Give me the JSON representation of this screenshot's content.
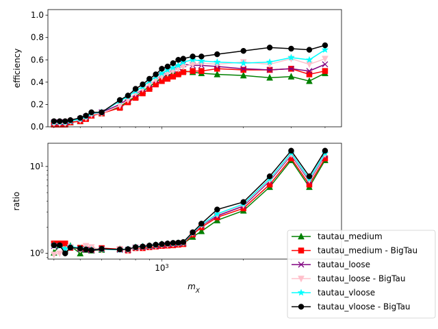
{
  "chart_data": [
    {
      "type": "line",
      "panel": "top",
      "title": "",
      "xlabel": "",
      "ylabel": "efficiency",
      "xscale": "log",
      "xlim": [
        380,
        4600
      ],
      "ylim": [
        0.0,
        1.05
      ],
      "xticks": [],
      "yticks": [
        "0.0",
        "0.2",
        "0.4",
        "0.6",
        "0.8",
        "1.0"
      ],
      "x": [
        400,
        420,
        440,
        460,
        500,
        525,
        550,
        600,
        700,
        750,
        800,
        850,
        900,
        950,
        1000,
        1050,
        1100,
        1150,
        1200,
        1300,
        1400,
        1600,
        2000,
        2500,
        3000,
        3500,
        4000
      ],
      "series": [
        {
          "name": "tautau_medium",
          "color": "#008000",
          "marker": "triangle",
          "values": [
            0.03,
            0.03,
            0.03,
            0.04,
            0.05,
            0.08,
            0.1,
            0.12,
            0.18,
            0.23,
            0.27,
            0.32,
            0.36,
            0.4,
            0.44,
            0.46,
            0.48,
            0.48,
            0.5,
            0.49,
            0.48,
            0.47,
            0.46,
            0.44,
            0.45,
            0.41,
            0.48
          ]
        },
        {
          "name": "tautau_medium - BigTau",
          "color": "#ff0000",
          "marker": "square",
          "values": [
            0.02,
            0.02,
            0.02,
            0.04,
            0.05,
            0.07,
            0.1,
            0.12,
            0.17,
            0.22,
            0.26,
            0.3,
            0.34,
            0.38,
            0.41,
            0.43,
            0.45,
            0.47,
            0.49,
            0.5,
            0.5,
            0.52,
            0.51,
            0.51,
            0.52,
            0.47,
            0.5
          ]
        },
        {
          "name": "tautau_loose",
          "color": "#800080",
          "marker": "x",
          "values": [
            0.04,
            0.04,
            0.04,
            0.05,
            0.07,
            0.09,
            0.11,
            0.13,
            0.2,
            0.25,
            0.29,
            0.34,
            0.38,
            0.42,
            0.46,
            0.48,
            0.51,
            0.53,
            0.56,
            0.55,
            0.55,
            0.54,
            0.52,
            0.51,
            0.52,
            0.5,
            0.56
          ]
        },
        {
          "name": "tautau_loose - BigTau",
          "color": "#ffc0cb",
          "marker": "triangle-down",
          "values": [
            0.03,
            0.03,
            0.03,
            0.05,
            0.06,
            0.08,
            0.11,
            0.12,
            0.19,
            0.24,
            0.3,
            0.34,
            0.38,
            0.42,
            0.45,
            0.48,
            0.5,
            0.52,
            0.54,
            0.56,
            0.57,
            0.56,
            0.58,
            0.56,
            0.61,
            0.56,
            0.61
          ]
        },
        {
          "name": "tautau_vloose",
          "color": "#00ffff",
          "marker": "star",
          "values": [
            0.04,
            0.04,
            0.04,
            0.05,
            0.07,
            0.09,
            0.12,
            0.13,
            0.23,
            0.27,
            0.32,
            0.36,
            0.41,
            0.45,
            0.48,
            0.51,
            0.53,
            0.55,
            0.58,
            0.6,
            0.59,
            0.58,
            0.57,
            0.58,
            0.62,
            0.6,
            0.69
          ]
        },
        {
          "name": "tautau_vloose - BigTau",
          "color": "#000000",
          "marker": "circle",
          "values": [
            0.05,
            0.05,
            0.05,
            0.06,
            0.08,
            0.1,
            0.13,
            0.13,
            0.24,
            0.28,
            0.34,
            0.38,
            0.43,
            0.47,
            0.52,
            0.54,
            0.57,
            0.6,
            0.61,
            0.63,
            0.63,
            0.65,
            0.68,
            0.71,
            0.7,
            0.69,
            0.73
          ]
        }
      ]
    },
    {
      "type": "line",
      "panel": "bottom",
      "title": "",
      "xlabel": "m_X",
      "ylabel": "ratio",
      "xscale": "log",
      "yscale": "log",
      "xlim": [
        380,
        4600
      ],
      "ylim": [
        0.86,
        18.5
      ],
      "xticks": [
        "10^3"
      ],
      "yticks": [
        "10^0",
        "10^1"
      ],
      "x": [
        400,
        420,
        440,
        460,
        500,
        525,
        550,
        600,
        700,
        750,
        800,
        850,
        900,
        950,
        1000,
        1050,
        1100,
        1150,
        1200,
        1300,
        1400,
        1600,
        2000,
        2500,
        3000,
        3500,
        4000
      ],
      "series": [
        {
          "name": "tautau_medium",
          "color": "#008000",
          "marker": "triangle",
          "values": [
            1.02,
            1.25,
            1.12,
            1.22,
            1.0,
            1.1,
            1.08,
            1.1,
            1.12,
            1.1,
            1.18,
            1.2,
            1.22,
            1.25,
            1.28,
            1.29,
            1.3,
            1.31,
            1.3,
            1.55,
            1.8,
            2.4,
            3.1,
            5.8,
            11.8,
            5.8,
            11.8
          ]
        },
        {
          "name": "tautau_medium - BigTau",
          "color": "#ff0000",
          "marker": "square",
          "values": [
            1.3,
            1.3,
            1.3,
            1.16,
            1.16,
            1.12,
            1.1,
            1.15,
            1.12,
            1.08,
            1.15,
            1.15,
            1.18,
            1.2,
            1.22,
            1.23,
            1.24,
            1.26,
            1.28,
            1.65,
            2.0,
            2.6,
            3.3,
            6.2,
            12.4,
            6.2,
            12.4
          ]
        },
        {
          "name": "tautau_loose",
          "color": "#800080",
          "marker": "x",
          "values": [
            1.22,
            1.2,
            1.1,
            1.18,
            1.12,
            1.1,
            1.08,
            1.12,
            1.1,
            1.1,
            1.17,
            1.18,
            1.2,
            1.22,
            1.25,
            1.27,
            1.28,
            1.3,
            1.32,
            1.7,
            2.1,
            2.7,
            3.5,
            6.8,
            13.5,
            6.8,
            13.5
          ]
        },
        {
          "name": "tautau_loose - BigTau",
          "color": "#ffc0cb",
          "marker": "triangle-down",
          "values": [
            0.97,
            1.0,
            1.05,
            1.18,
            1.1,
            1.22,
            1.18,
            1.1,
            1.12,
            1.08,
            1.15,
            1.18,
            1.2,
            1.22,
            1.25,
            1.26,
            1.28,
            1.3,
            1.32,
            1.72,
            2.12,
            2.8,
            3.6,
            7.0,
            13.8,
            7.0,
            13.8
          ]
        },
        {
          "name": "tautau_vloose",
          "color": "#00ffff",
          "marker": "star",
          "values": [
            1.25,
            1.22,
            1.12,
            1.2,
            1.15,
            1.12,
            1.1,
            1.12,
            1.1,
            1.12,
            1.18,
            1.2,
            1.22,
            1.25,
            1.27,
            1.29,
            1.3,
            1.31,
            1.33,
            1.73,
            2.15,
            2.85,
            3.7,
            7.2,
            14.2,
            7.2,
            14.2
          ]
        },
        {
          "name": "tautau_vloose - BigTau",
          "color": "#000000",
          "marker": "circle",
          "values": [
            1.24,
            1.24,
            1.0,
            1.17,
            1.14,
            1.11,
            1.09,
            1.13,
            1.11,
            1.12,
            1.18,
            1.2,
            1.23,
            1.26,
            1.28,
            1.3,
            1.32,
            1.33,
            1.35,
            1.75,
            2.2,
            3.2,
            3.9,
            7.7,
            15.2,
            7.7,
            15.2
          ]
        }
      ]
    }
  ]
}
